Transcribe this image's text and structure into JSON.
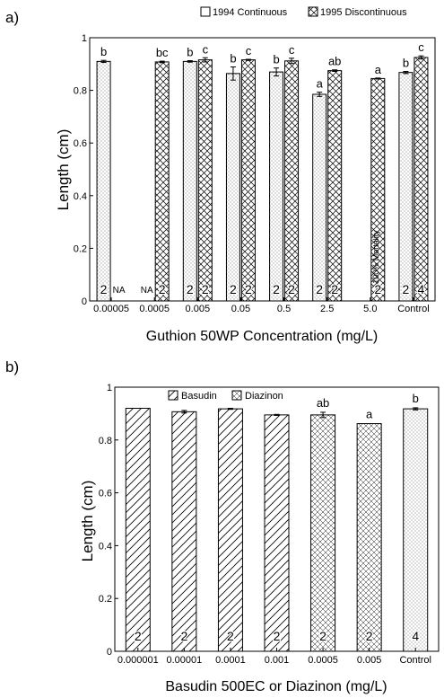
{
  "chart_data": [
    {
      "type": "bar",
      "panel_label": "a)",
      "xlabel": "Guthion 50WP Concentration (mg/L)",
      "ylabel": "Length (cm)",
      "ylim": [
        0,
        1
      ],
      "yticks": [
        "0",
        "0.2",
        "0.4",
        "0.6",
        "0.8",
        "1"
      ],
      "categories": [
        "0.00005",
        "0.0005",
        "0.005",
        "0.05",
        "0.5",
        "2.5",
        "5.0",
        "Control"
      ],
      "legend": {
        "placement": "top",
        "entries": [
          "1994 Continuous",
          "1995 Discontinuous"
        ]
      },
      "series": [
        {
          "name": "1994 Continuous",
          "pattern": "dots",
          "values": [
            0.91,
            null,
            0.91,
            0.864,
            0.87,
            0.785,
            null,
            0.868
          ],
          "errors": [
            0.004,
            null,
            0.003,
            0.025,
            0.015,
            0.008,
            null,
            0.004
          ],
          "letters": [
            "b",
            "",
            "b",
            "b",
            "b",
            "a",
            "",
            "b"
          ],
          "n": [
            "2",
            "NA",
            "2",
            "2",
            "2",
            "2",
            "",
            "2"
          ]
        },
        {
          "name": "1995 Discontinuous",
          "pattern": "crosshatch",
          "values": [
            null,
            0.908,
            0.916,
            0.916,
            0.912,
            0.875,
            0.845,
            0.925
          ],
          "errors": [
            null,
            0.003,
            0.008,
            0.002,
            0.01,
            0.003,
            0.002,
            0.006
          ],
          "letters": [
            "",
            "bc",
            "c",
            "c",
            "c",
            "ab",
            "a",
            "c"
          ],
          "n": [
            "NA",
            "2",
            "2",
            "2",
            "2",
            "2",
            "2",
            "4"
          ]
        }
      ],
      "annotations": [
        "100% Mortality"
      ]
    },
    {
      "type": "bar",
      "panel_label": "b)",
      "xlabel": "Basudin 500EC or Diazinon (mg/L)",
      "ylabel": "Length (cm)",
      "ylim": [
        0,
        1
      ],
      "yticks": [
        "0",
        "0.2",
        "0.4",
        "0.6",
        "0.8",
        "1"
      ],
      "categories": [
        "0.000001",
        "0.00001",
        "0.0001",
        "0.001",
        "0.0005",
        "0.005",
        "Control"
      ],
      "legend": {
        "placement": "top",
        "entries": [
          "Basudin",
          "Diazinon"
        ]
      },
      "bars": [
        {
          "series": "Basudin",
          "value": 0.92,
          "error": 0.0,
          "letter": "",
          "n": "2",
          "pattern": "diagonal"
        },
        {
          "series": "Basudin",
          "value": 0.907,
          "error": 0.005,
          "letter": "",
          "n": "2",
          "pattern": "diagonal"
        },
        {
          "series": "Basudin",
          "value": 0.918,
          "error": 0.002,
          "letter": "",
          "n": "2",
          "pattern": "diagonal"
        },
        {
          "series": "Basudin",
          "value": 0.895,
          "error": 0.002,
          "letter": "",
          "n": "2",
          "pattern": "diagonal"
        },
        {
          "series": "Diazinon",
          "value": 0.895,
          "error": 0.01,
          "letter": "ab",
          "n": "2",
          "pattern": "crosshatch-fine"
        },
        {
          "series": "Diazinon",
          "value": 0.862,
          "error": 0.0,
          "letter": "a",
          "n": "2",
          "pattern": "crosshatch-fine"
        },
        {
          "series": "Control",
          "value": 0.918,
          "error": 0.004,
          "letter": "b",
          "n": "4",
          "pattern": "dots"
        }
      ]
    }
  ]
}
